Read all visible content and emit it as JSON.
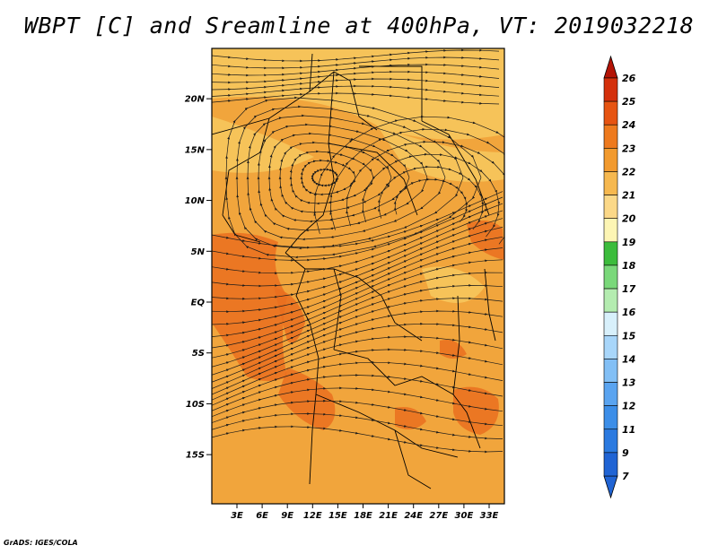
{
  "title": "WBPT [C] and Sreamline at 400hPa, VT: 2019032218",
  "footer": "GrADS: IGES/COLA",
  "map": {
    "lat_labels": [
      {
        "text": "20N",
        "lat": 20
      },
      {
        "text": "15N",
        "lat": 15
      },
      {
        "text": "10N",
        "lat": 10
      },
      {
        "text": "5N",
        "lat": 5
      },
      {
        "text": "EQ",
        "lat": 0
      },
      {
        "text": "5S",
        "lat": -5
      },
      {
        "text": "10S",
        "lat": -10
      },
      {
        "text": "15S",
        "lat": -15
      }
    ],
    "lon_labels": [
      {
        "text": "3E",
        "lon": 3
      },
      {
        "text": "6E",
        "lon": 6
      },
      {
        "text": "9E",
        "lon": 9
      },
      {
        "text": "12E",
        "lon": 12
      },
      {
        "text": "15E",
        "lon": 15
      },
      {
        "text": "18E",
        "lon": 18
      },
      {
        "text": "21E",
        "lon": 21
      },
      {
        "text": "24E",
        "lon": 24
      },
      {
        "text": "27E",
        "lon": 27
      },
      {
        "text": "30E",
        "lon": 30
      },
      {
        "text": "33E",
        "lon": 33
      }
    ],
    "colors": {
      "background_field": "#f1a53c",
      "warm_band": "#ea6f1e",
      "cool_band": "#f7c85e",
      "streamline": "#1a1a1a",
      "border": "#000000"
    }
  },
  "colorbar": {
    "levels": [
      "7",
      "9",
      "11",
      "12",
      "13",
      "14",
      "15",
      "16",
      "17",
      "18",
      "19",
      "20",
      "21",
      "22",
      "23",
      "24",
      "25",
      "26"
    ],
    "colors": [
      "#2064d4",
      "#2b7ae0",
      "#3c8ee8",
      "#5aa4f0",
      "#82bff5",
      "#a8d6fa",
      "#d8f0fb",
      "#b4ecb0",
      "#7ad87a",
      "#3cbc3c",
      "#fdf5b4",
      "#fbd888",
      "#f6b84f",
      "#f29a2e",
      "#ee7a1e",
      "#e65412",
      "#d4300c",
      "#b41406"
    ]
  }
}
